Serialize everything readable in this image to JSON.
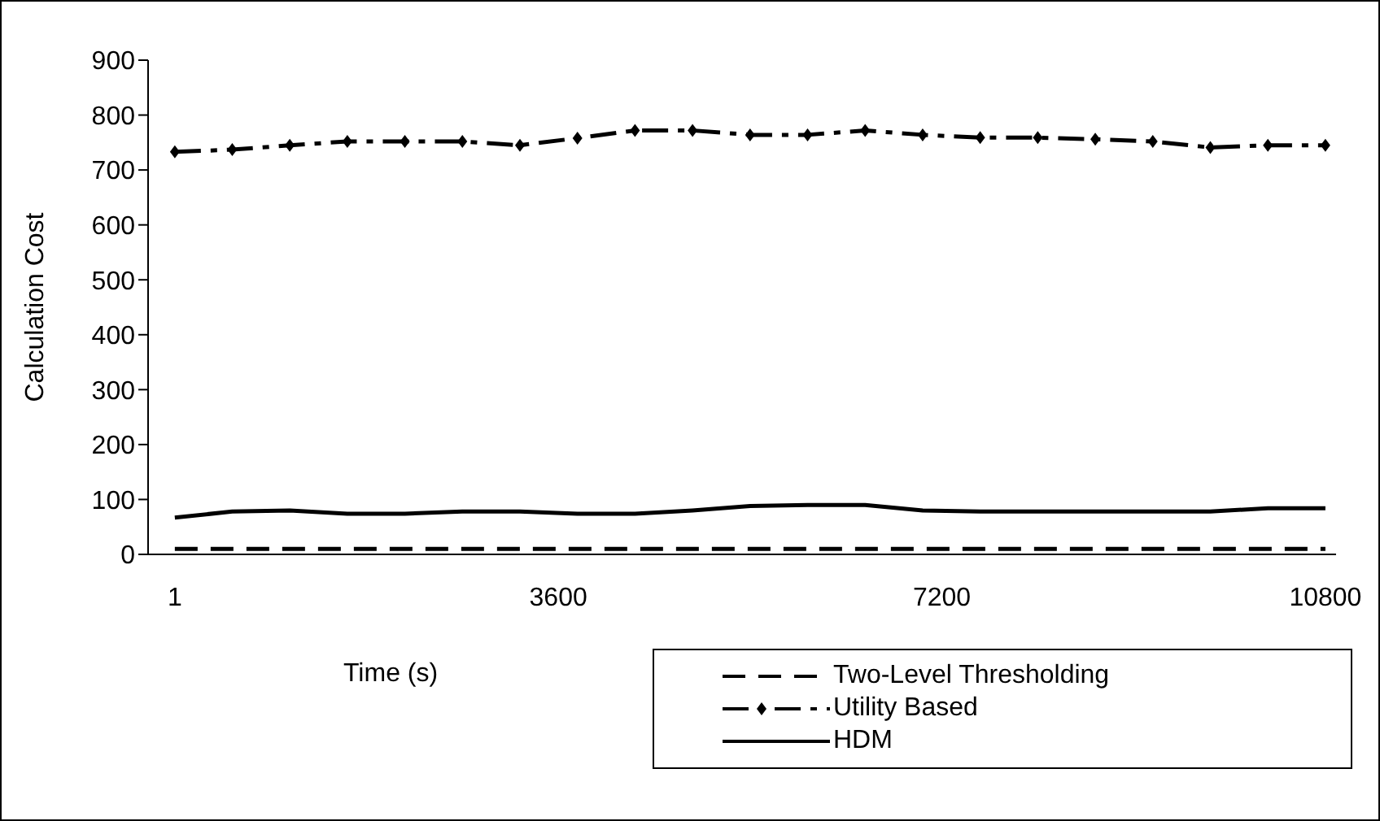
{
  "chart_data": {
    "type": "line",
    "xlabel": "Time (s)",
    "ylabel": "Calculation Cost",
    "x": [
      1,
      540,
      1080,
      1620,
      2160,
      2700,
      3240,
      3780,
      4320,
      4860,
      5400,
      5940,
      6480,
      7020,
      7560,
      8100,
      8640,
      9180,
      9720,
      10260,
      10800
    ],
    "xlim": [
      -250,
      10900
    ],
    "xticks": [
      1,
      3600,
      7200,
      10800
    ],
    "ylim": [
      0,
      900
    ],
    "yticks": [
      0,
      100,
      200,
      300,
      400,
      500,
      600,
      700,
      800,
      900
    ],
    "grid": false,
    "legend": "bottom right",
    "series": [
      {
        "name": "Two-Level Thresholding",
        "color": "#000000",
        "line_style": "dashed",
        "marker": "none",
        "values": [
          10,
          10,
          10,
          10,
          10,
          10,
          10,
          10,
          10,
          10,
          10,
          10,
          10,
          10,
          10,
          10,
          10,
          10,
          10,
          10,
          10
        ]
      },
      {
        "name": "Utility Based",
        "color": "#000000",
        "line_style": "dashdot",
        "marker": "diamond",
        "values": [
          733,
          737,
          745,
          752,
          752,
          752,
          745,
          758,
          772,
          772,
          764,
          764,
          772,
          764,
          759,
          759,
          756,
          752,
          741,
          745,
          745
        ]
      },
      {
        "name": "HDM",
        "color": "#000000",
        "line_style": "solid",
        "marker": "none",
        "values": [
          67,
          78,
          80,
          74,
          74,
          78,
          78,
          74,
          74,
          80,
          88,
          90,
          90,
          80,
          78,
          78,
          78,
          78,
          78,
          84,
          84
        ]
      }
    ]
  }
}
